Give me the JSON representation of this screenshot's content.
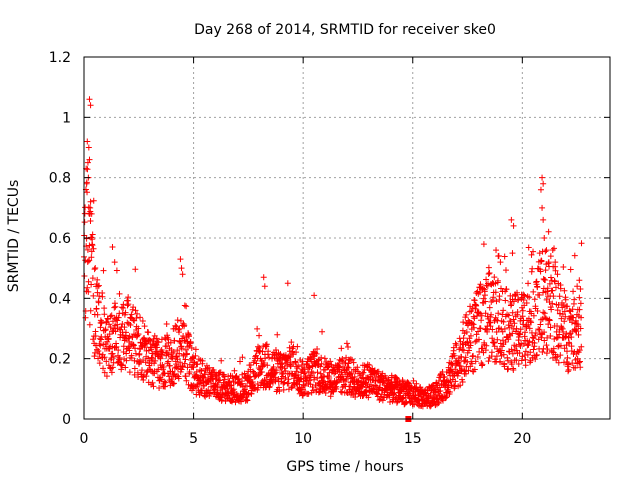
{
  "chart_data": {
    "type": "scatter",
    "title": "Day 268 of 2014, SRMTID for receiver ske0",
    "xlabel": "GPS time / hours",
    "ylabel": "SRMTID / TECUs",
    "xlim": [
      0,
      24
    ],
    "ylim": [
      0,
      1.2
    ],
    "grid": true,
    "marker": "+",
    "x_ticks": [
      0,
      5,
      10,
      15,
      20
    ],
    "x_tick_labels": [
      "0",
      "5",
      "10",
      "15",
      "20"
    ],
    "y_ticks": [
      0,
      0.2,
      0.4,
      0.6,
      0.8,
      1.0,
      1.2
    ],
    "y_tick_labels": [
      "0",
      "0.2",
      "0.4",
      "0.6",
      "0.8",
      "1",
      "1.2"
    ],
    "series": [
      {
        "name": "ske0",
        "color": "#ff0000",
        "profile_hours": [
          0.0,
          0.2,
          0.5,
          1.0,
          1.5,
          2.0,
          2.5,
          3.0,
          3.5,
          4.0,
          4.5,
          5.0,
          5.5,
          6.0,
          6.5,
          7.0,
          7.5,
          8.0,
          8.5,
          9.0,
          9.5,
          10.0,
          10.5,
          11.0,
          11.5,
          12.0,
          12.5,
          13.0,
          13.5,
          14.0,
          14.5,
          15.0,
          15.5,
          16.0,
          16.5,
          17.0,
          17.5,
          18.0,
          18.5,
          19.0,
          19.5,
          20.0,
          20.5,
          21.0,
          21.5,
          22.0,
          22.5
        ],
        "profile_values": [
          0.45,
          0.62,
          0.35,
          0.25,
          0.3,
          0.28,
          0.24,
          0.2,
          0.18,
          0.2,
          0.25,
          0.15,
          0.13,
          0.12,
          0.1,
          0.1,
          0.11,
          0.18,
          0.17,
          0.15,
          0.18,
          0.13,
          0.16,
          0.14,
          0.13,
          0.15,
          0.12,
          0.13,
          0.11,
          0.1,
          0.09,
          0.08,
          0.07,
          0.08,
          0.12,
          0.18,
          0.25,
          0.3,
          0.35,
          0.32,
          0.28,
          0.3,
          0.35,
          0.4,
          0.35,
          0.28,
          0.3
        ],
        "x_range": [
          0,
          22.7
        ],
        "n_points": 2300,
        "spikes": [
          {
            "x": 0.25,
            "y": 1.06
          },
          {
            "x": 0.3,
            "y": 1.04
          },
          {
            "x": 0.15,
            "y": 0.92
          },
          {
            "x": 0.22,
            "y": 0.9
          },
          {
            "x": 0.1,
            "y": 0.83
          },
          {
            "x": 0.18,
            "y": 0.85
          },
          {
            "x": 0.2,
            "y": 0.8
          },
          {
            "x": 0.25,
            "y": 0.86
          },
          {
            "x": 0.12,
            "y": 0.78
          },
          {
            "x": 0.3,
            "y": 0.72
          },
          {
            "x": 0.35,
            "y": 0.68
          },
          {
            "x": 0.28,
            "y": 0.7
          },
          {
            "x": 1.3,
            "y": 0.57
          },
          {
            "x": 1.4,
            "y": 0.52
          },
          {
            "x": 4.4,
            "y": 0.53
          },
          {
            "x": 4.45,
            "y": 0.5
          },
          {
            "x": 4.5,
            "y": 0.48
          },
          {
            "x": 8.2,
            "y": 0.47
          },
          {
            "x": 8.25,
            "y": 0.44
          },
          {
            "x": 9.3,
            "y": 0.45
          },
          {
            "x": 10.5,
            "y": 0.41
          },
          {
            "x": 18.8,
            "y": 0.56
          },
          {
            "x": 18.9,
            "y": 0.54
          },
          {
            "x": 19.0,
            "y": 0.52
          },
          {
            "x": 19.5,
            "y": 0.66
          },
          {
            "x": 19.6,
            "y": 0.64
          },
          {
            "x": 19.55,
            "y": 0.55
          },
          {
            "x": 20.9,
            "y": 0.8
          },
          {
            "x": 20.95,
            "y": 0.78
          },
          {
            "x": 20.85,
            "y": 0.76
          },
          {
            "x": 20.9,
            "y": 0.7
          },
          {
            "x": 20.95,
            "y": 0.66
          },
          {
            "x": 21.0,
            "y": 0.6
          },
          {
            "x": 21.1,
            "y": 0.56
          },
          {
            "x": 21.3,
            "y": 0.54
          },
          {
            "x": 21.5,
            "y": 0.52
          },
          {
            "x": 22.6,
            "y": 0.46
          },
          {
            "x": 22.5,
            "y": 0.44
          }
        ],
        "outlier_box": {
          "x": 14.8,
          "y": 0.0
        }
      }
    ]
  }
}
